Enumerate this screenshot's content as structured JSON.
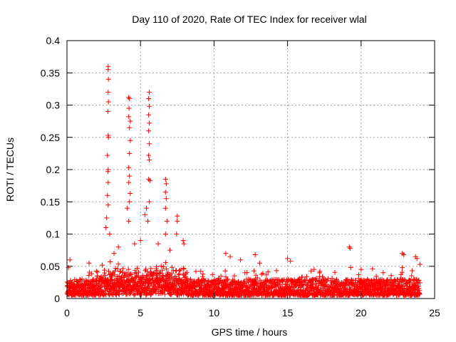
{
  "chart_data": {
    "type": "scatter",
    "title": "Day 110 of 2020, Rate Of TEC Index for receiver wlal",
    "xlabel": "GPS time / hours",
    "ylabel": "ROTI / TECUs",
    "xlim": [
      0,
      25
    ],
    "ylim": [
      0,
      0.4
    ],
    "x_ticks": [
      "0",
      "5",
      "10",
      "15",
      "20",
      "25"
    ],
    "y_ticks": [
      "0",
      "0.05",
      "0.1",
      "0.15",
      "0.2",
      "0.25",
      "0.3",
      "0.35",
      "0.4"
    ],
    "grid": true,
    "marker": "+",
    "marker_color": "#ff0000",
    "series": [
      {
        "name": "ROTI",
        "dense_band": {
          "x_range": [
            0,
            24
          ],
          "y_range": [
            0.005,
            0.03
          ]
        },
        "peaks": [
          {
            "x": 2.8,
            "y": 0.36
          },
          {
            "x": 2.8,
            "y": 0.355
          },
          {
            "x": 2.82,
            "y": 0.34
          },
          {
            "x": 2.8,
            "y": 0.32
          },
          {
            "x": 2.82,
            "y": 0.305
          },
          {
            "x": 2.78,
            "y": 0.29
          },
          {
            "x": 2.8,
            "y": 0.253
          },
          {
            "x": 2.82,
            "y": 0.25
          },
          {
            "x": 2.75,
            "y": 0.222
          },
          {
            "x": 2.8,
            "y": 0.2
          },
          {
            "x": 2.78,
            "y": 0.197
          },
          {
            "x": 2.8,
            "y": 0.18
          },
          {
            "x": 2.75,
            "y": 0.16
          },
          {
            "x": 2.8,
            "y": 0.145
          },
          {
            "x": 2.7,
            "y": 0.125
          },
          {
            "x": 2.65,
            "y": 0.11
          },
          {
            "x": 2.9,
            "y": 0.1
          },
          {
            "x": 4.2,
            "y": 0.312
          },
          {
            "x": 4.25,
            "y": 0.31
          },
          {
            "x": 4.22,
            "y": 0.295
          },
          {
            "x": 4.2,
            "y": 0.282
          },
          {
            "x": 4.3,
            "y": 0.275
          },
          {
            "x": 4.25,
            "y": 0.265
          },
          {
            "x": 4.3,
            "y": 0.245
          },
          {
            "x": 4.25,
            "y": 0.225
          },
          {
            "x": 4.2,
            "y": 0.203
          },
          {
            "x": 4.25,
            "y": 0.19
          },
          {
            "x": 4.2,
            "y": 0.18
          },
          {
            "x": 4.3,
            "y": 0.163
          },
          {
            "x": 4.25,
            "y": 0.15
          },
          {
            "x": 4.1,
            "y": 0.14
          },
          {
            "x": 4.2,
            "y": 0.12
          },
          {
            "x": 5.6,
            "y": 0.32
          },
          {
            "x": 5.55,
            "y": 0.31
          },
          {
            "x": 5.6,
            "y": 0.298
          },
          {
            "x": 5.55,
            "y": 0.285
          },
          {
            "x": 5.6,
            "y": 0.272
          },
          {
            "x": 5.55,
            "y": 0.26
          },
          {
            "x": 5.6,
            "y": 0.24
          },
          {
            "x": 5.55,
            "y": 0.222
          },
          {
            "x": 5.6,
            "y": 0.215
          },
          {
            "x": 5.55,
            "y": 0.185
          },
          {
            "x": 5.65,
            "y": 0.183
          },
          {
            "x": 5.6,
            "y": 0.15
          },
          {
            "x": 5.4,
            "y": 0.14
          },
          {
            "x": 5.3,
            "y": 0.13
          },
          {
            "x": 5.5,
            "y": 0.12
          },
          {
            "x": 6.7,
            "y": 0.185
          },
          {
            "x": 6.75,
            "y": 0.178
          },
          {
            "x": 6.7,
            "y": 0.165
          },
          {
            "x": 6.75,
            "y": 0.155
          },
          {
            "x": 6.7,
            "y": 0.14
          },
          {
            "x": 6.8,
            "y": 0.12
          },
          {
            "x": 6.7,
            "y": 0.1
          },
          {
            "x": 7.5,
            "y": 0.128
          },
          {
            "x": 7.5,
            "y": 0.12
          },
          {
            "x": 7.45,
            "y": 0.1
          },
          {
            "x": 7.9,
            "y": 0.09
          },
          {
            "x": 7.95,
            "y": 0.085
          },
          {
            "x": 3.5,
            "y": 0.08
          },
          {
            "x": 3.2,
            "y": 0.07
          },
          {
            "x": 4.6,
            "y": 0.085
          },
          {
            "x": 5.0,
            "y": 0.09
          },
          {
            "x": 6.2,
            "y": 0.085
          },
          {
            "x": 7.0,
            "y": 0.075
          },
          {
            "x": 1.5,
            "y": 0.055
          },
          {
            "x": 0.2,
            "y": 0.06
          },
          {
            "x": 0.1,
            "y": 0.048
          },
          {
            "x": 10.8,
            "y": 0.07
          },
          {
            "x": 11.1,
            "y": 0.065
          },
          {
            "x": 11.8,
            "y": 0.06
          },
          {
            "x": 12.8,
            "y": 0.068
          },
          {
            "x": 13.1,
            "y": 0.055
          },
          {
            "x": 15.0,
            "y": 0.062
          },
          {
            "x": 15.2,
            "y": 0.058
          },
          {
            "x": 16.8,
            "y": 0.045
          },
          {
            "x": 17.2,
            "y": 0.042
          },
          {
            "x": 19.2,
            "y": 0.08
          },
          {
            "x": 19.25,
            "y": 0.078
          },
          {
            "x": 20.0,
            "y": 0.045
          },
          {
            "x": 21.5,
            "y": 0.04
          },
          {
            "x": 22.8,
            "y": 0.07
          },
          {
            "x": 22.9,
            "y": 0.068
          },
          {
            "x": 22.8,
            "y": 0.048
          },
          {
            "x": 23.7,
            "y": 0.065
          },
          {
            "x": 23.8,
            "y": 0.062
          },
          {
            "x": 24.0,
            "y": 0.053
          }
        ]
      }
    ]
  }
}
